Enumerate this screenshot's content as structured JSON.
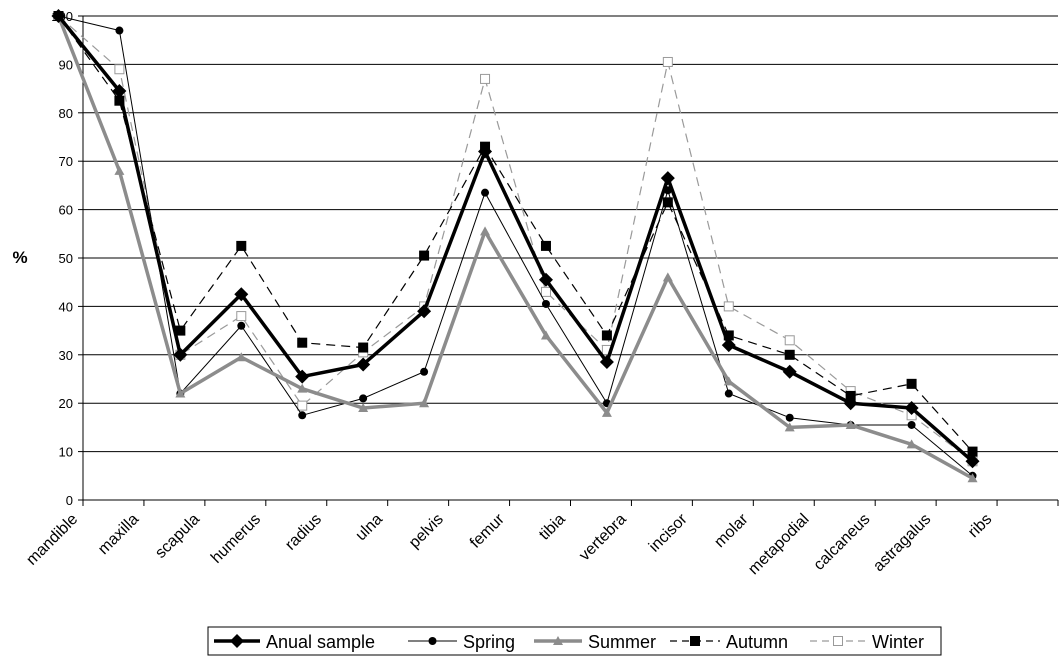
{
  "chart_data": {
    "type": "line",
    "ylabel": "%",
    "ylim": [
      0,
      100
    ],
    "yticks": [
      0,
      10,
      20,
      30,
      40,
      50,
      60,
      70,
      80,
      90,
      100
    ],
    "grid": true,
    "legend_position": "bottom",
    "categories": [
      "mandible",
      "maxilla",
      "scapula",
      "humerus",
      "radius",
      "ulna",
      "pelvis",
      "femur",
      "tibia",
      "vertebra",
      "incisor",
      "molar",
      "metapodial",
      "calcaneus",
      "astragalus",
      "ribs"
    ],
    "series": [
      {
        "name": "Anual sample",
        "color": "#000000",
        "style": "solid-thick",
        "marker": "diamond",
        "values": [
          100,
          84.5,
          30,
          42.5,
          25.5,
          28,
          39,
          72,
          45.5,
          28.5,
          66.5,
          32,
          26.5,
          20,
          19,
          8
        ]
      },
      {
        "name": "Spring",
        "color": "#000000",
        "style": "solid-thin",
        "marker": "circle",
        "values": [
          100,
          97,
          22,
          36,
          17.5,
          21,
          26.5,
          63.5,
          40.5,
          20,
          64,
          22,
          17,
          15.5,
          15.5,
          5
        ]
      },
      {
        "name": "Summer",
        "color": "#8c8c8c",
        "style": "solid-thick",
        "marker": "triangle",
        "values": [
          100,
          68,
          22,
          29.5,
          23,
          19,
          20,
          55.5,
          34,
          18,
          46,
          24.5,
          15,
          15.5,
          11.5,
          4.5
        ]
      },
      {
        "name": "Autumn",
        "color": "#000000",
        "style": "dashed",
        "marker": "square",
        "values": [
          100,
          82.5,
          35,
          52.5,
          32.5,
          31.5,
          50.5,
          73,
          52.5,
          34,
          61.5,
          34,
          30,
          21.5,
          24,
          10
        ]
      },
      {
        "name": "Winter",
        "color": "#9a9a9a",
        "style": "dashed-light",
        "marker": "square-open",
        "values": [
          100,
          89,
          30,
          38,
          19.5,
          30.5,
          40,
          87,
          43,
          31,
          90.5,
          40,
          33,
          22.5,
          17.5,
          8
        ]
      }
    ]
  }
}
